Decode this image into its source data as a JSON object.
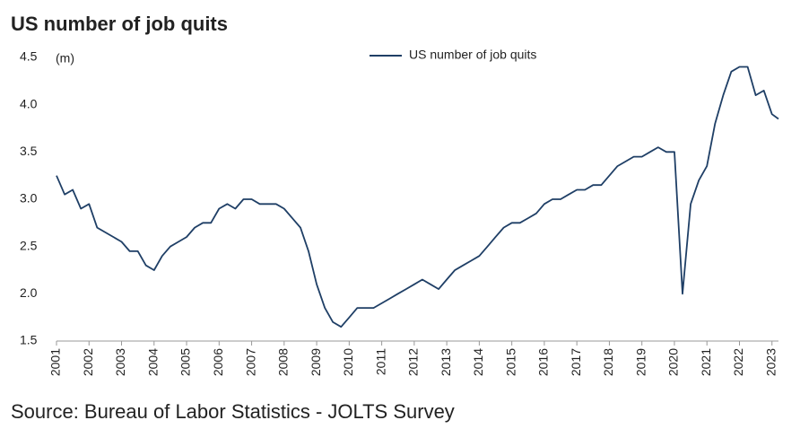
{
  "chart_data": {
    "type": "line",
    "title": "US number of job quits",
    "y_label": "(m)",
    "source": "Source: Bureau of Labor Statistics - JOLTS Survey",
    "xlim": [
      2001,
      2023.2
    ],
    "xticks": [
      2001,
      2002,
      2003,
      2004,
      2005,
      2006,
      2007,
      2008,
      2009,
      2010,
      2011,
      2012,
      2013,
      2014,
      2015,
      2016,
      2017,
      2018,
      2019,
      2020,
      2021,
      2022,
      2023
    ],
    "ylim": [
      1.5,
      4.5
    ],
    "yticks": [
      1.5,
      {
        "value": 2,
        "label": "2.0"
      },
      2.5,
      {
        "value": 3,
        "label": "3.0"
      },
      3.5,
      {
        "value": 4,
        "label": "4.0"
      },
      4.5
    ],
    "grid": false,
    "legend": "top",
    "x": [
      2001,
      2001.25,
      2001.5,
      2001.75,
      2002,
      2002.25,
      2002.5,
      2002.75,
      2003,
      2003.25,
      2003.5,
      2003.75,
      2004,
      2004.25,
      2004.5,
      2004.75,
      2005,
      2005.25,
      2005.5,
      2005.75,
      2006,
      2006.25,
      2006.5,
      2006.75,
      2007,
      2007.25,
      2007.5,
      2007.75,
      2008,
      2008.25,
      2008.5,
      2008.75,
      2009,
      2009.25,
      2009.5,
      2009.75,
      2010,
      2010.25,
      2010.5,
      2010.75,
      2011,
      2011.25,
      2011.5,
      2011.75,
      2012,
      2012.25,
      2012.5,
      2012.75,
      2013,
      2013.25,
      2013.5,
      2013.75,
      2014,
      2014.25,
      2014.5,
      2014.75,
      2015,
      2015.25,
      2015.5,
      2015.75,
      2016,
      2016.25,
      2016.5,
      2016.75,
      2017,
      2017.25,
      2017.5,
      2017.75,
      2018,
      2018.25,
      2018.5,
      2018.75,
      2019,
      2019.25,
      2019.5,
      2019.75,
      2020,
      2020.25,
      2020.5,
      2020.75,
      2021,
      2021.25,
      2021.5,
      2021.75,
      2022,
      2022.25,
      2022.5,
      2022.75,
      2023,
      2023.2
    ],
    "series": [
      {
        "name": "US number of job quits",
        "color": "#1f3f66",
        "values": [
          3.25,
          3.05,
          3.1,
          2.9,
          2.95,
          2.7,
          2.65,
          2.6,
          2.55,
          2.45,
          2.45,
          2.3,
          2.25,
          2.4,
          2.5,
          2.55,
          2.6,
          2.7,
          2.75,
          2.75,
          2.9,
          2.95,
          2.9,
          3.0,
          3.0,
          2.95,
          2.95,
          2.95,
          2.9,
          2.8,
          2.7,
          2.45,
          2.1,
          1.85,
          1.7,
          1.65,
          1.75,
          1.85,
          1.85,
          1.85,
          1.9,
          1.95,
          2.0,
          2.05,
          2.1,
          2.15,
          2.1,
          2.05,
          2.15,
          2.25,
          2.3,
          2.35,
          2.4,
          2.5,
          2.6,
          2.7,
          2.75,
          2.75,
          2.8,
          2.85,
          2.95,
          3.0,
          3.0,
          3.05,
          3.1,
          3.1,
          3.15,
          3.15,
          3.25,
          3.35,
          3.4,
          3.45,
          3.45,
          3.5,
          3.55,
          3.5,
          3.5,
          2.0,
          2.95,
          3.2,
          3.35,
          3.8,
          4.1,
          4.35,
          4.4,
          4.4,
          4.1,
          4.15,
          3.9,
          3.85
        ]
      }
    ]
  }
}
